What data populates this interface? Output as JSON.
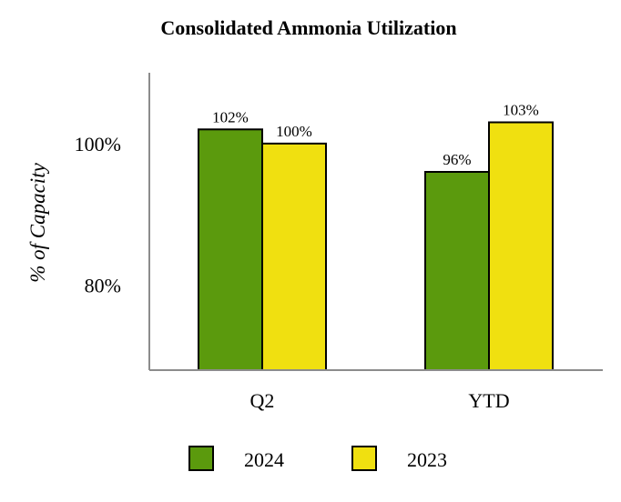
{
  "chart_data": {
    "type": "bar",
    "title": "Consolidated Ammonia Utilization",
    "ylabel": "% of Capacity",
    "xlabel": "",
    "categories": [
      "Q2",
      "YTD"
    ],
    "series": [
      {
        "name": "2024",
        "values": [
          102,
          96
        ],
        "labels": [
          "102%",
          "96%"
        ],
        "color": "#5b9a0d"
      },
      {
        "name": "2023",
        "values": [
          100,
          103
        ],
        "labels": [
          "100%",
          "103%"
        ],
        "color": "#f0e010"
      }
    ],
    "ylim": [
      68,
      110
    ],
    "yticks": [
      {
        "value": 80,
        "label": "80%"
      },
      {
        "value": 100,
        "label": "100%"
      }
    ],
    "grid": false,
    "legend": "bottom"
  }
}
